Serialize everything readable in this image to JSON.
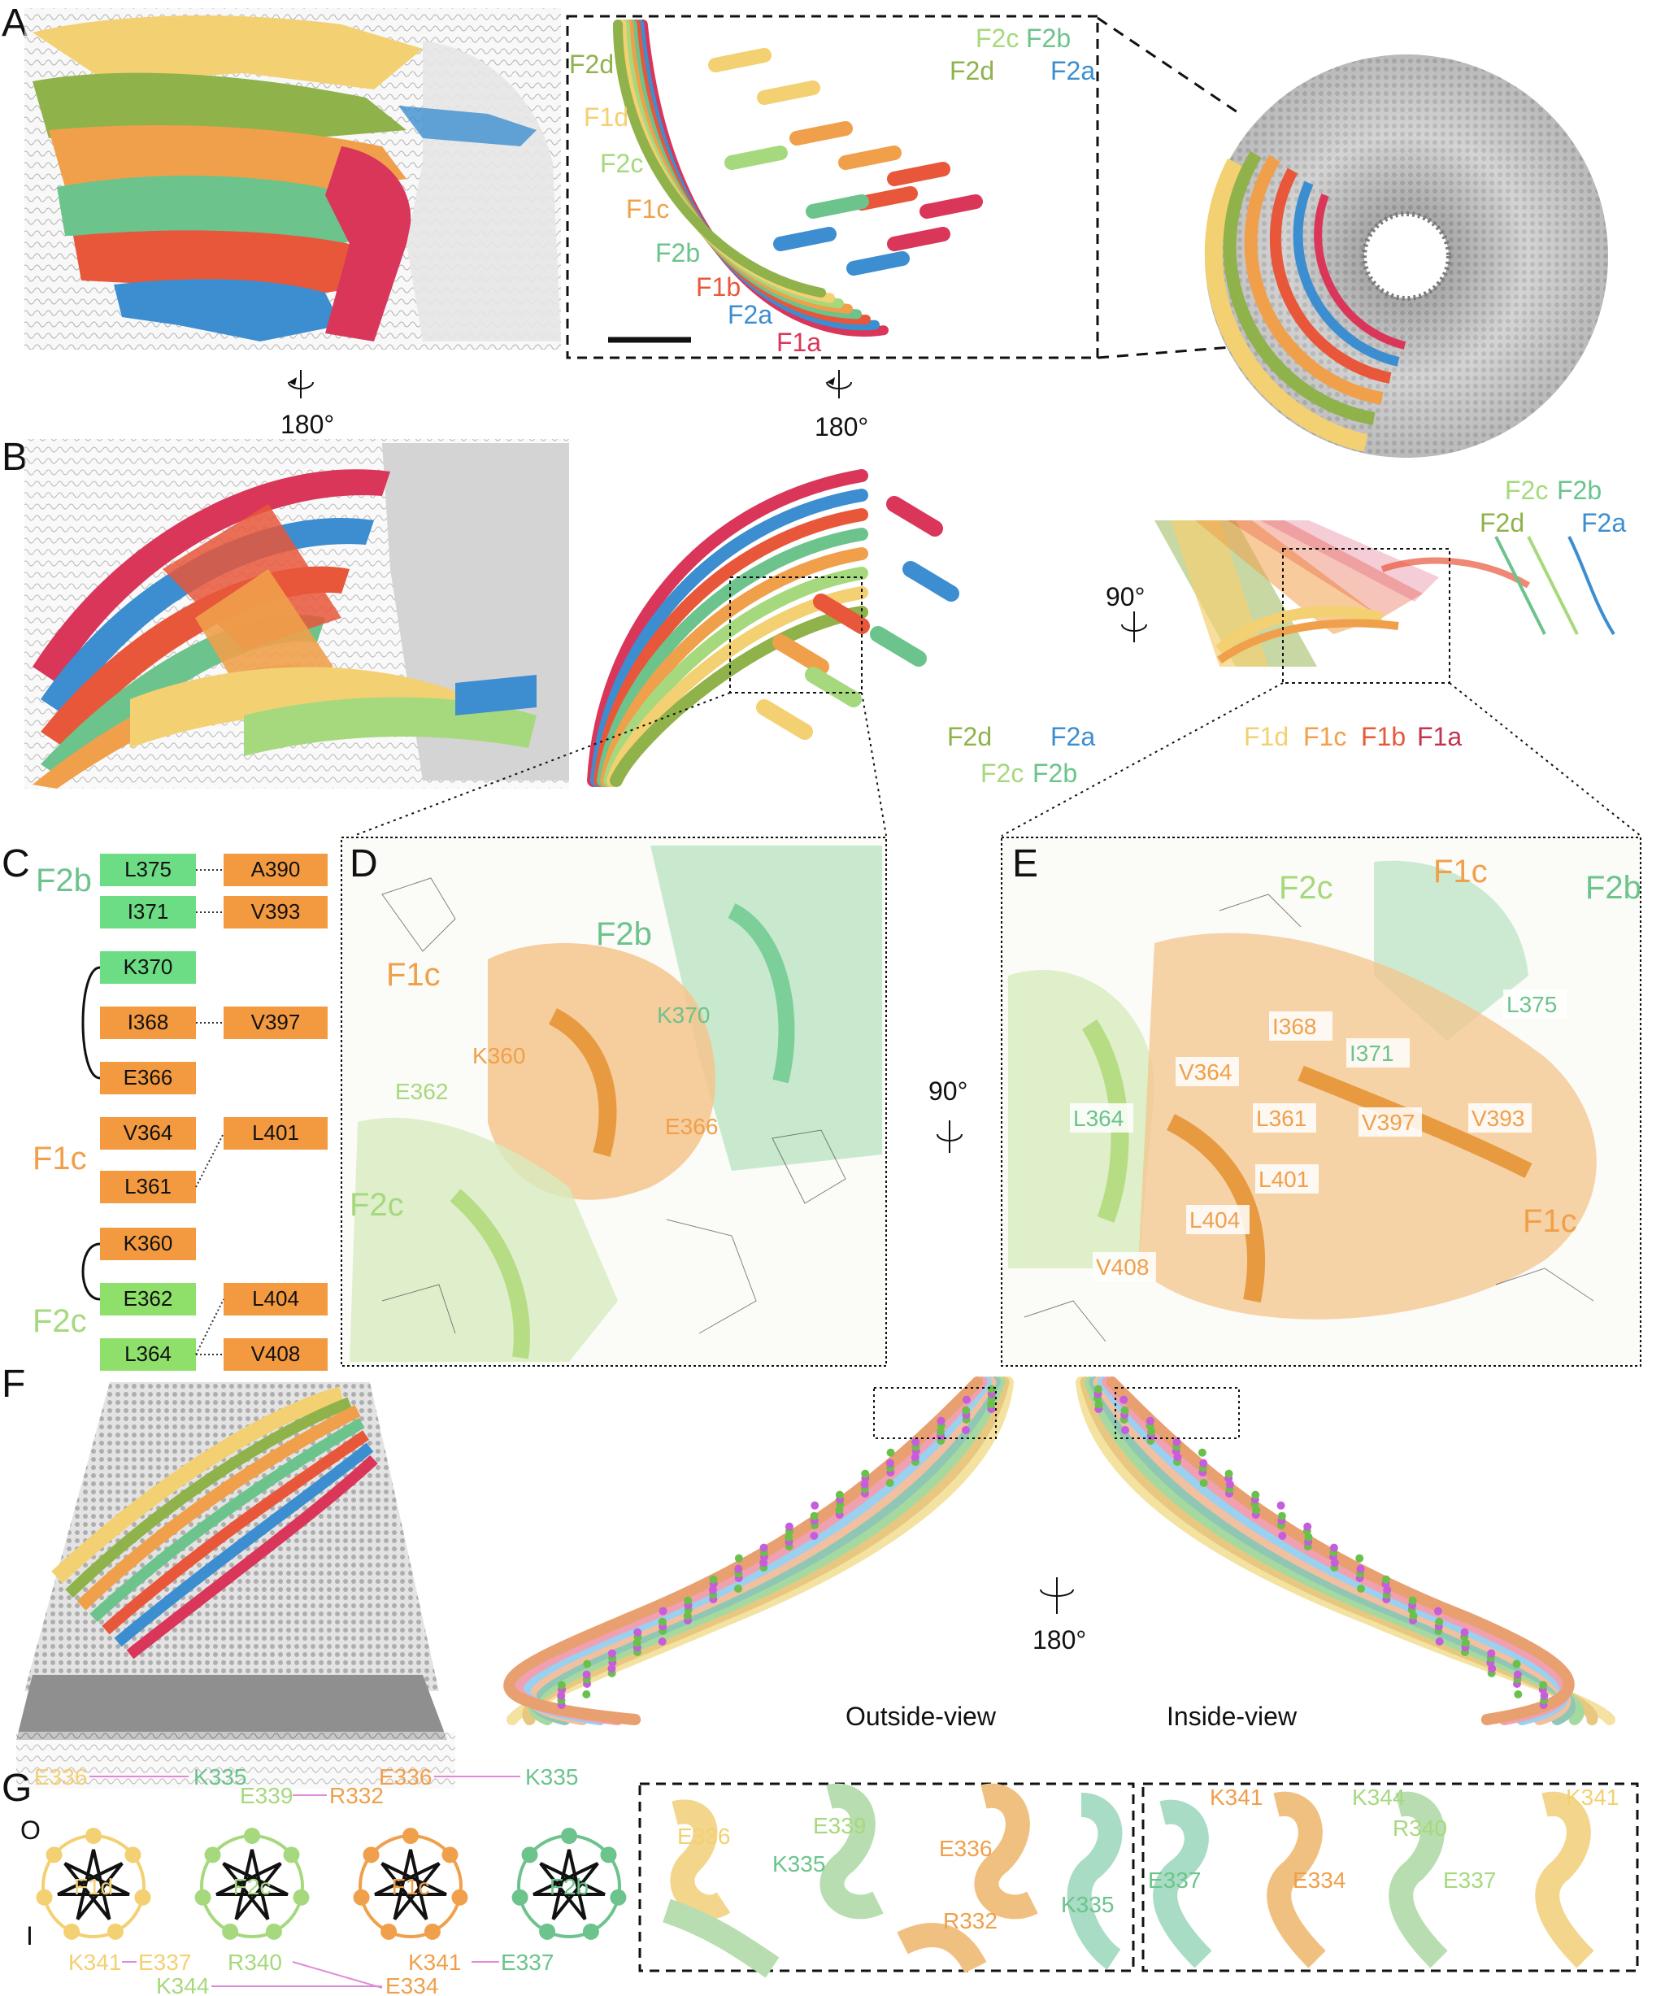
{
  "panel_letters": {
    "a": "A",
    "b": "B",
    "c": "C",
    "d": "D",
    "e": "E",
    "f": "F",
    "g": "G"
  },
  "colors": {
    "F1a": "#d9365a",
    "F1b": "#e8573a",
    "F1c": "#f0a04b",
    "F1d": "#f3d072",
    "F2a": "#3c8ed0",
    "F2b": "#6cc38c",
    "F2c": "#a6d97d",
    "F2d": "#8fb24a",
    "grey": "#cfcfcf",
    "purple": "#e08ad7"
  },
  "rotations": {
    "rot180": "180°",
    "rot90": "90°"
  },
  "panelA": {
    "strands": [
      {
        "key": "F2d",
        "label": "F2d",
        "color": "#8fb24a"
      },
      {
        "key": "F1d",
        "label": "F1d",
        "color": "#f3d072"
      },
      {
        "key": "F2c",
        "label": "F2c",
        "color": "#a6d97d"
      },
      {
        "key": "F1c",
        "label": "F1c",
        "color": "#f0a04b"
      },
      {
        "key": "F2b",
        "label": "F2b",
        "color": "#6cc38c"
      },
      {
        "key": "F1b",
        "label": "F1b",
        "color": "#e8573a"
      },
      {
        "key": "F2a",
        "label": "F2a",
        "color": "#3c8ed0"
      },
      {
        "key": "F1a",
        "label": "F1a",
        "color": "#d9365a"
      }
    ],
    "top_labels": [
      {
        "label": "F2c",
        "color": "#a6d97d"
      },
      {
        "label": "F2b",
        "color": "#6cc38c"
      },
      {
        "label": "F2d",
        "color": "#8fb24a"
      },
      {
        "label": "F2a",
        "color": "#3c8ed0"
      }
    ]
  },
  "panelB": {
    "mid_labels": [
      {
        "label": "F2d",
        "color": "#8fb24a"
      },
      {
        "label": "F2a",
        "color": "#3c8ed0"
      },
      {
        "label": "F2c",
        "color": "#a6d97d"
      },
      {
        "label": "F2b",
        "color": "#6cc38c"
      }
    ],
    "right_top": [
      {
        "label": "F2c",
        "color": "#a6d97d"
      },
      {
        "label": "F2b",
        "color": "#6cc38c"
      },
      {
        "label": "F2d",
        "color": "#8fb24a"
      },
      {
        "label": "F2a",
        "color": "#3c8ed0"
      }
    ],
    "right_bottom": [
      {
        "label": "F1d",
        "color": "#f3d072"
      },
      {
        "label": "F1c",
        "color": "#f0a04b"
      },
      {
        "label": "F1b",
        "color": "#e8573a"
      },
      {
        "label": "F1a",
        "color": "#c0344f"
      }
    ]
  },
  "panelC": {
    "group_labels": {
      "F2b": "F2b",
      "F1c": "F1c",
      "F2c": "F2c"
    },
    "left_boxes": [
      "L375",
      "I371",
      "K370",
      "I368",
      "E366",
      "V364",
      "L361",
      "K360",
      "E362",
      "L364"
    ],
    "right_boxes": [
      "A390",
      "V393",
      "V397",
      "L401",
      "L404",
      "V408"
    ]
  },
  "panelD": {
    "chain_labels": {
      "F2b": "F2b",
      "F1c": "F1c",
      "F2c": "F2c"
    },
    "residues": [
      "K370",
      "K360",
      "E362",
      "E366"
    ]
  },
  "panelE": {
    "chain_labels": {
      "F2c": "F2c",
      "F1c_top": "F1c",
      "F2b": "F2b",
      "F1c_bottom": "F1c"
    },
    "residues_green": [
      "L375",
      "I371",
      "L364"
    ],
    "residues_orange": [
      "I368",
      "V364",
      "L361",
      "V397",
      "V393",
      "L401",
      "L404",
      "V408"
    ]
  },
  "panelF": {
    "outside": "Outside-view",
    "inside": "Inside-view"
  },
  "panelG": {
    "side_O": "O",
    "side_I": "I",
    "wheels": [
      {
        "label": "F1d",
        "color": "#f3d072"
      },
      {
        "label": "F2c",
        "color": "#a6d97d"
      },
      {
        "label": "F1c",
        "color": "#f0a04b"
      },
      {
        "label": "F2b",
        "color": "#6cc38c"
      }
    ],
    "top_pairs": {
      "a1": "E336",
      "a2": "K335",
      "b1": "E339",
      "b2": "R332",
      "c1": "E336",
      "c2": "K335"
    },
    "bottom_pairs": {
      "a1": "K341",
      "a2": "E337",
      "a3": "R340",
      "b1": "K341",
      "b2": "E337",
      "c1": "K344",
      "c2": "E334"
    },
    "inset1": [
      "E336",
      "E339",
      "K335",
      "E336",
      "R332",
      "K335"
    ],
    "inset2": [
      "K341",
      "K344",
      "K341",
      "R340",
      "E337",
      "E334",
      "E337"
    ]
  }
}
